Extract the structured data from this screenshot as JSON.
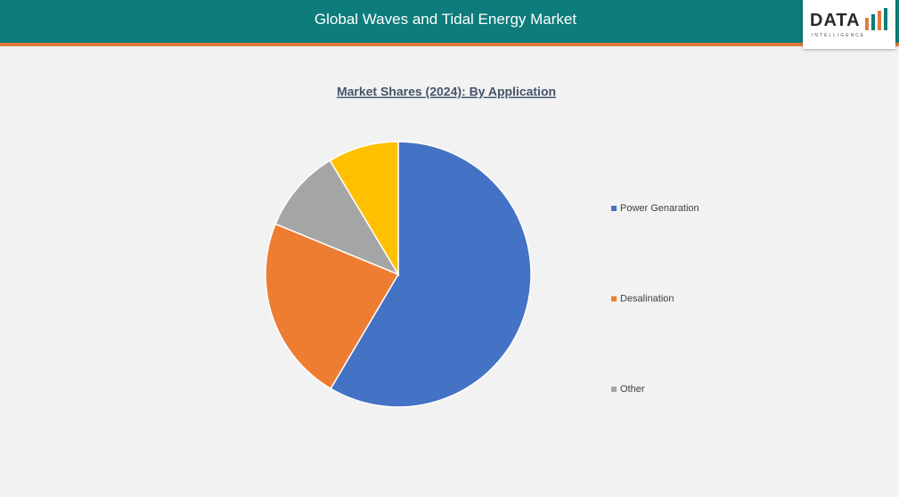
{
  "header": {
    "title": "Global Waves and Tidal Energy Market",
    "logo": "DATA",
    "logo_sub": "INTELLIGENCE"
  },
  "chart_data": {
    "type": "pie",
    "title": "Market Shares (2024): By Application",
    "categories": [
      "Power Genaration",
      "Desalination",
      "Other",
      null
    ],
    "values": [
      58.5,
      22.7,
      10.2,
      8.6
    ],
    "colors": [
      "#4472c4",
      "#ed7d31",
      "#a5a5a5",
      "#ffc000"
    ],
    "legend": "right"
  }
}
